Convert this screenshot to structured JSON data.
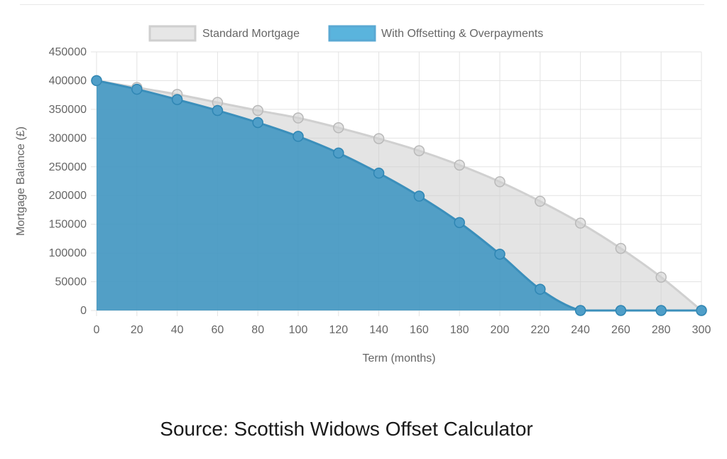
{
  "chart_data": {
    "type": "area",
    "xlabel": "Term (months)",
    "ylabel": "Mortgage Balance (£)",
    "x": [
      0,
      20,
      40,
      60,
      80,
      100,
      120,
      140,
      160,
      180,
      200,
      220,
      240,
      260,
      280,
      300
    ],
    "x_ticks": [
      "0",
      "20",
      "40",
      "60",
      "80",
      "100",
      "120",
      "140",
      "160",
      "180",
      "200",
      "220",
      "240",
      "260",
      "280",
      "300"
    ],
    "y_ticks": [
      "0",
      "50000",
      "100000",
      "150000",
      "200000",
      "250000",
      "300000",
      "350000",
      "400000",
      "450000"
    ],
    "xlim": [
      0,
      300
    ],
    "ylim": [
      0,
      450000
    ],
    "grid": true,
    "legend_position": "top-center",
    "series": [
      {
        "name": "Standard Mortgage",
        "color": "#dcdcdc",
        "values": [
          400000,
          388000,
          376000,
          362000,
          348000,
          335000,
          318000,
          299000,
          278000,
          253000,
          224000,
          190000,
          152000,
          108000,
          58000,
          0
        ]
      },
      {
        "name": "With Offsetting & Overpayments",
        "color": "#4aa0c8",
        "values": [
          400000,
          385000,
          367000,
          348000,
          327000,
          303000,
          274000,
          239000,
          199000,
          153000,
          98000,
          37000,
          0,
          0,
          0,
          0
        ]
      }
    ]
  },
  "source": "Source: Scottish Widows Offset Calculator"
}
